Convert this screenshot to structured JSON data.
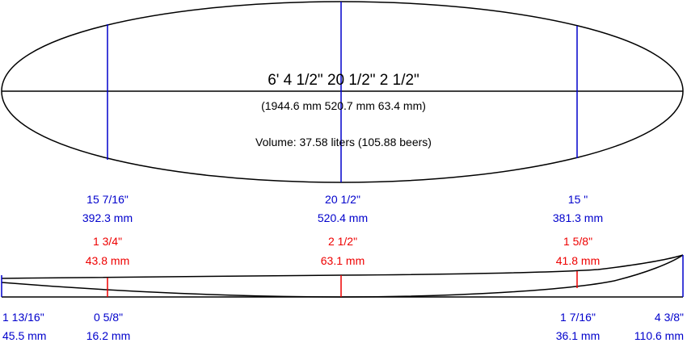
{
  "summary": {
    "dims_imperial": "6'  4 1/2\"   20 1/2\"   2 1/2\"",
    "dims_metric": "(1944.6 mm   520.7 mm   63.4 mm)",
    "volume": "Volume: 37.58 liters (105.88 beers)"
  },
  "widths": [
    {
      "imperial": "15 7/16\"",
      "metric": "392.3 mm"
    },
    {
      "imperial": "20 1/2\"",
      "metric": "520.4 mm"
    },
    {
      "imperial": "15 \"",
      "metric": "381.3 mm"
    }
  ],
  "thickness": [
    {
      "imperial": "1 3/4\"",
      "metric": "43.8 mm"
    },
    {
      "imperial": "2 1/2\"",
      "metric": "63.1 mm"
    },
    {
      "imperial": "1 5/8\"",
      "metric": "41.8 mm"
    }
  ],
  "rocker": {
    "nose_left": {
      "imperial": "1 13/16\"",
      "metric": "45.5 mm"
    },
    "left": {
      "imperial": "0 5/8\"",
      "metric": "16.2 mm"
    },
    "right": {
      "imperial": "1 7/16\"",
      "metric": "36.1 mm"
    },
    "tail_right": {
      "imperial": "4 3/8\"",
      "metric": "110.6 mm"
    }
  },
  "colors": {
    "outline": "#000000",
    "width_marker": "#0000cc",
    "thickness_marker": "#ee0000"
  }
}
